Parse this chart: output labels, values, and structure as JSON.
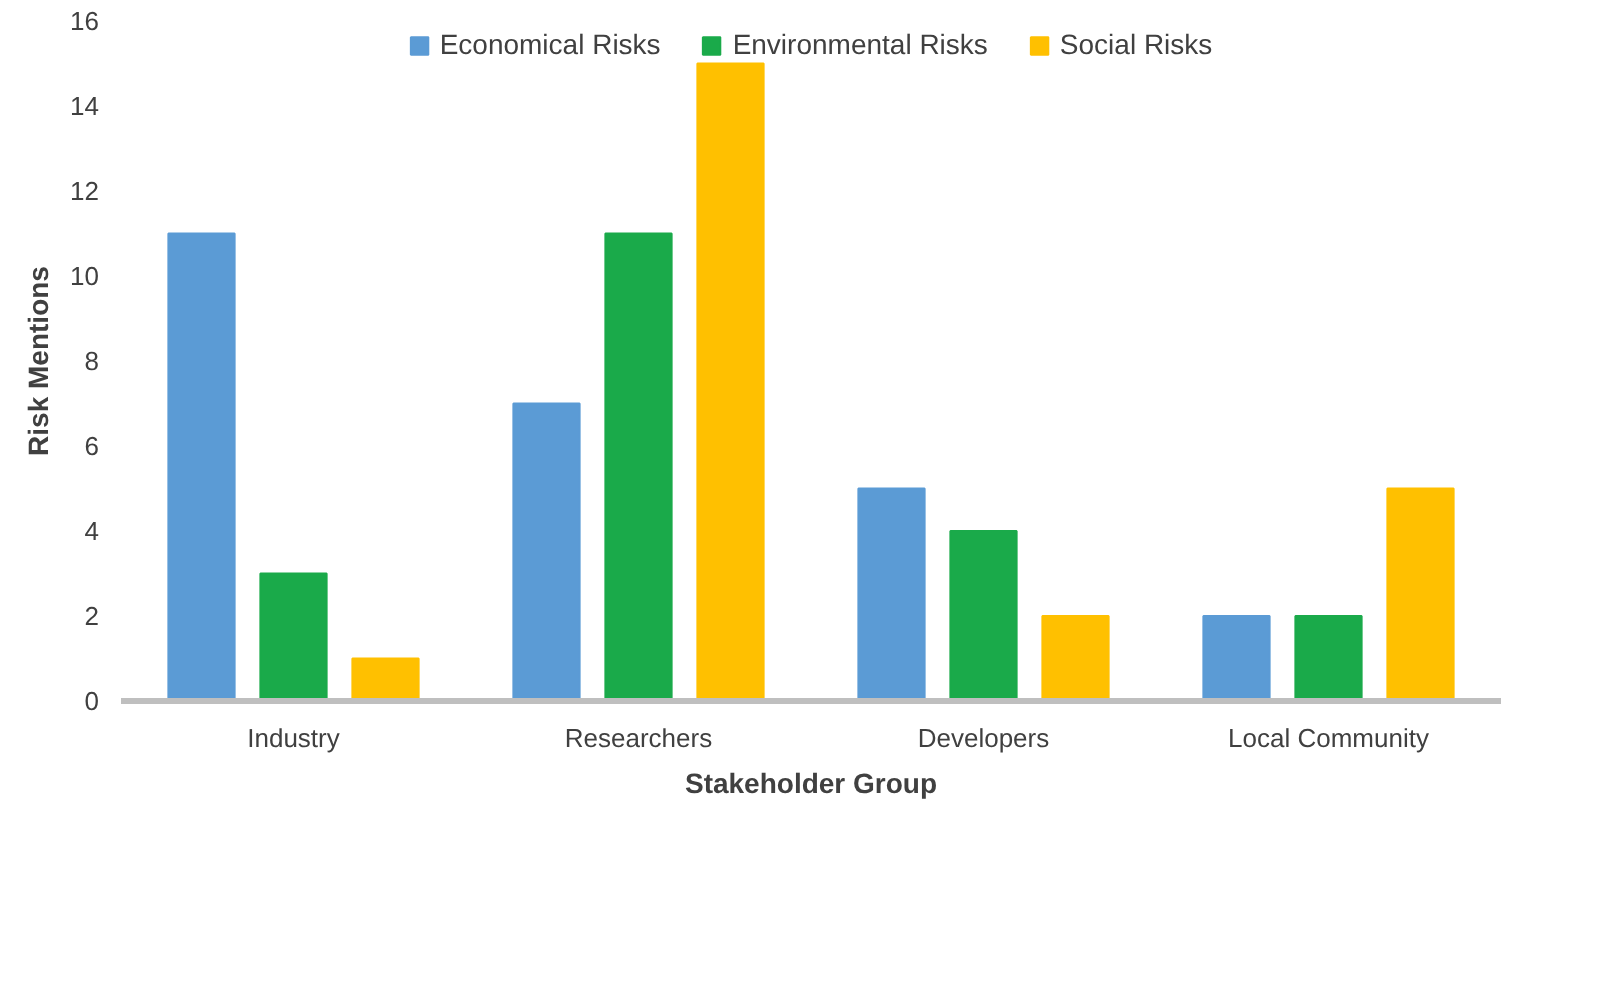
{
  "chart_data": {
    "type": "bar",
    "xlabel": "Stakeholder Group",
    "ylabel": "Risk Mentions",
    "categories": [
      "Industry",
      "Researchers",
      "Developers",
      "Local Community"
    ],
    "series": [
      {
        "name": "Economical Risks",
        "color": "#5b9bd5",
        "values": [
          11,
          7,
          5,
          2
        ]
      },
      {
        "name": "Environmental Risks",
        "color": "#1aaa4a",
        "values": [
          3,
          11,
          4,
          2
        ]
      },
      {
        "name": "Social Risks",
        "color": "#ffc000",
        "values": [
          1,
          15,
          2,
          5
        ]
      }
    ],
    "ylim": [
      0,
      16
    ],
    "yticks": [
      0,
      2,
      4,
      6,
      8,
      10,
      12,
      14,
      16
    ],
    "grid": false,
    "legend": "top"
  }
}
